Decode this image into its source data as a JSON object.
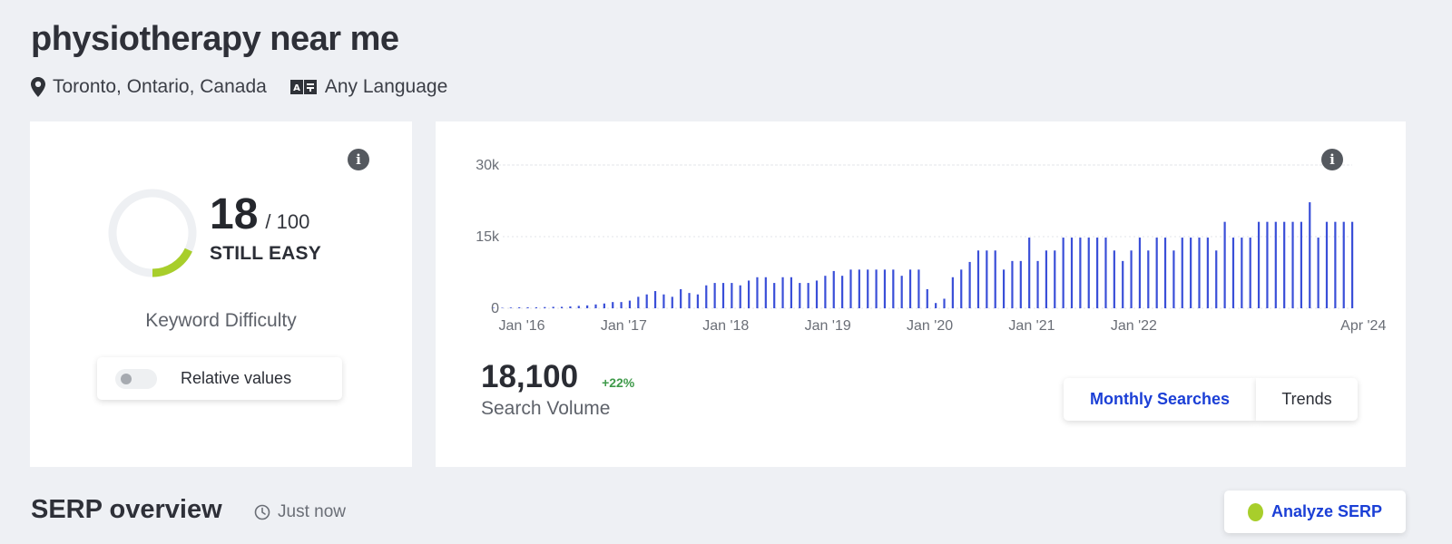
{
  "header": {
    "title": "physiotherapy near me",
    "location": "Toronto, Ontario, Canada",
    "language": "Any Language",
    "location_icon": "map-pin-icon",
    "language_icon": "translate-icon"
  },
  "keyword_difficulty": {
    "score": "18",
    "max": "/ 100",
    "score_value": 18,
    "max_value": 100,
    "level": "STILL EASY",
    "caption": "Keyword Difficulty",
    "toggle_label": "Relative values",
    "toggle_on": false,
    "gauge_color": "#a8ce2b",
    "track_color": "#eef0f3"
  },
  "search_volume": {
    "value": "18,100",
    "change": "+22%",
    "caption": "Search Volume",
    "tabs": [
      {
        "label": "Monthly Searches",
        "active": true
      },
      {
        "label": "Trends",
        "active": false
      }
    ]
  },
  "chart_data": {
    "type": "bar",
    "title": "",
    "xlabel": "",
    "ylabel": "",
    "ylim": [
      0,
      30000
    ],
    "y_ticks": [
      {
        "value": 0,
        "label": "0"
      },
      {
        "value": 15000,
        "label": "15k"
      },
      {
        "value": 30000,
        "label": "30k"
      }
    ],
    "x_ticks": [
      {
        "index": 0,
        "label": "Jan '16"
      },
      {
        "index": 12,
        "label": "Jan '17"
      },
      {
        "index": 24,
        "label": "Jan '18"
      },
      {
        "index": 36,
        "label": "Jan '19"
      },
      {
        "index": 48,
        "label": "Jan '20"
      },
      {
        "index": 60,
        "label": "Jan '21"
      },
      {
        "index": 72,
        "label": "Jan '22"
      },
      {
        "index": 99,
        "label": "Apr '24"
      }
    ],
    "grid": true,
    "bar_color": "#3a4fd8",
    "series": [
      {
        "values": [
          100,
          100,
          150,
          200,
          200,
          200,
          250,
          300,
          300,
          400,
          500,
          600,
          800,
          1000,
          1300,
          1300,
          1600,
          2400,
          2900,
          3600,
          2900,
          2400,
          4000,
          3200,
          2900,
          4800,
          5300,
          5300,
          5300,
          4800,
          5800,
          6500,
          6500,
          5300,
          6500,
          6500,
          5300,
          5300,
          5800,
          6800,
          7800,
          6800,
          8100,
          8100,
          8100,
          8100,
          8100,
          8100,
          6800,
          8100,
          8100,
          4000,
          1100,
          2000,
          6500,
          8100,
          9700,
          12100,
          12100,
          12100,
          8100,
          9900,
          9900,
          14800,
          9900,
          12100,
          12100,
          14800,
          14800,
          14800,
          14800,
          14800,
          14800,
          12100,
          9900,
          12100,
          14800,
          12100,
          14800,
          14800,
          12100,
          14800,
          14800,
          14800,
          14800,
          12100,
          18100,
          14800,
          14800,
          14800,
          18100,
          18100,
          18100,
          18100,
          18100,
          18100,
          22200,
          14800,
          18100,
          18100,
          18100,
          18100
        ]
      }
    ]
  },
  "serp": {
    "title": "SERP overview",
    "time": "Just now",
    "time_icon": "clock-icon",
    "analyze_label": "Analyze SERP"
  }
}
